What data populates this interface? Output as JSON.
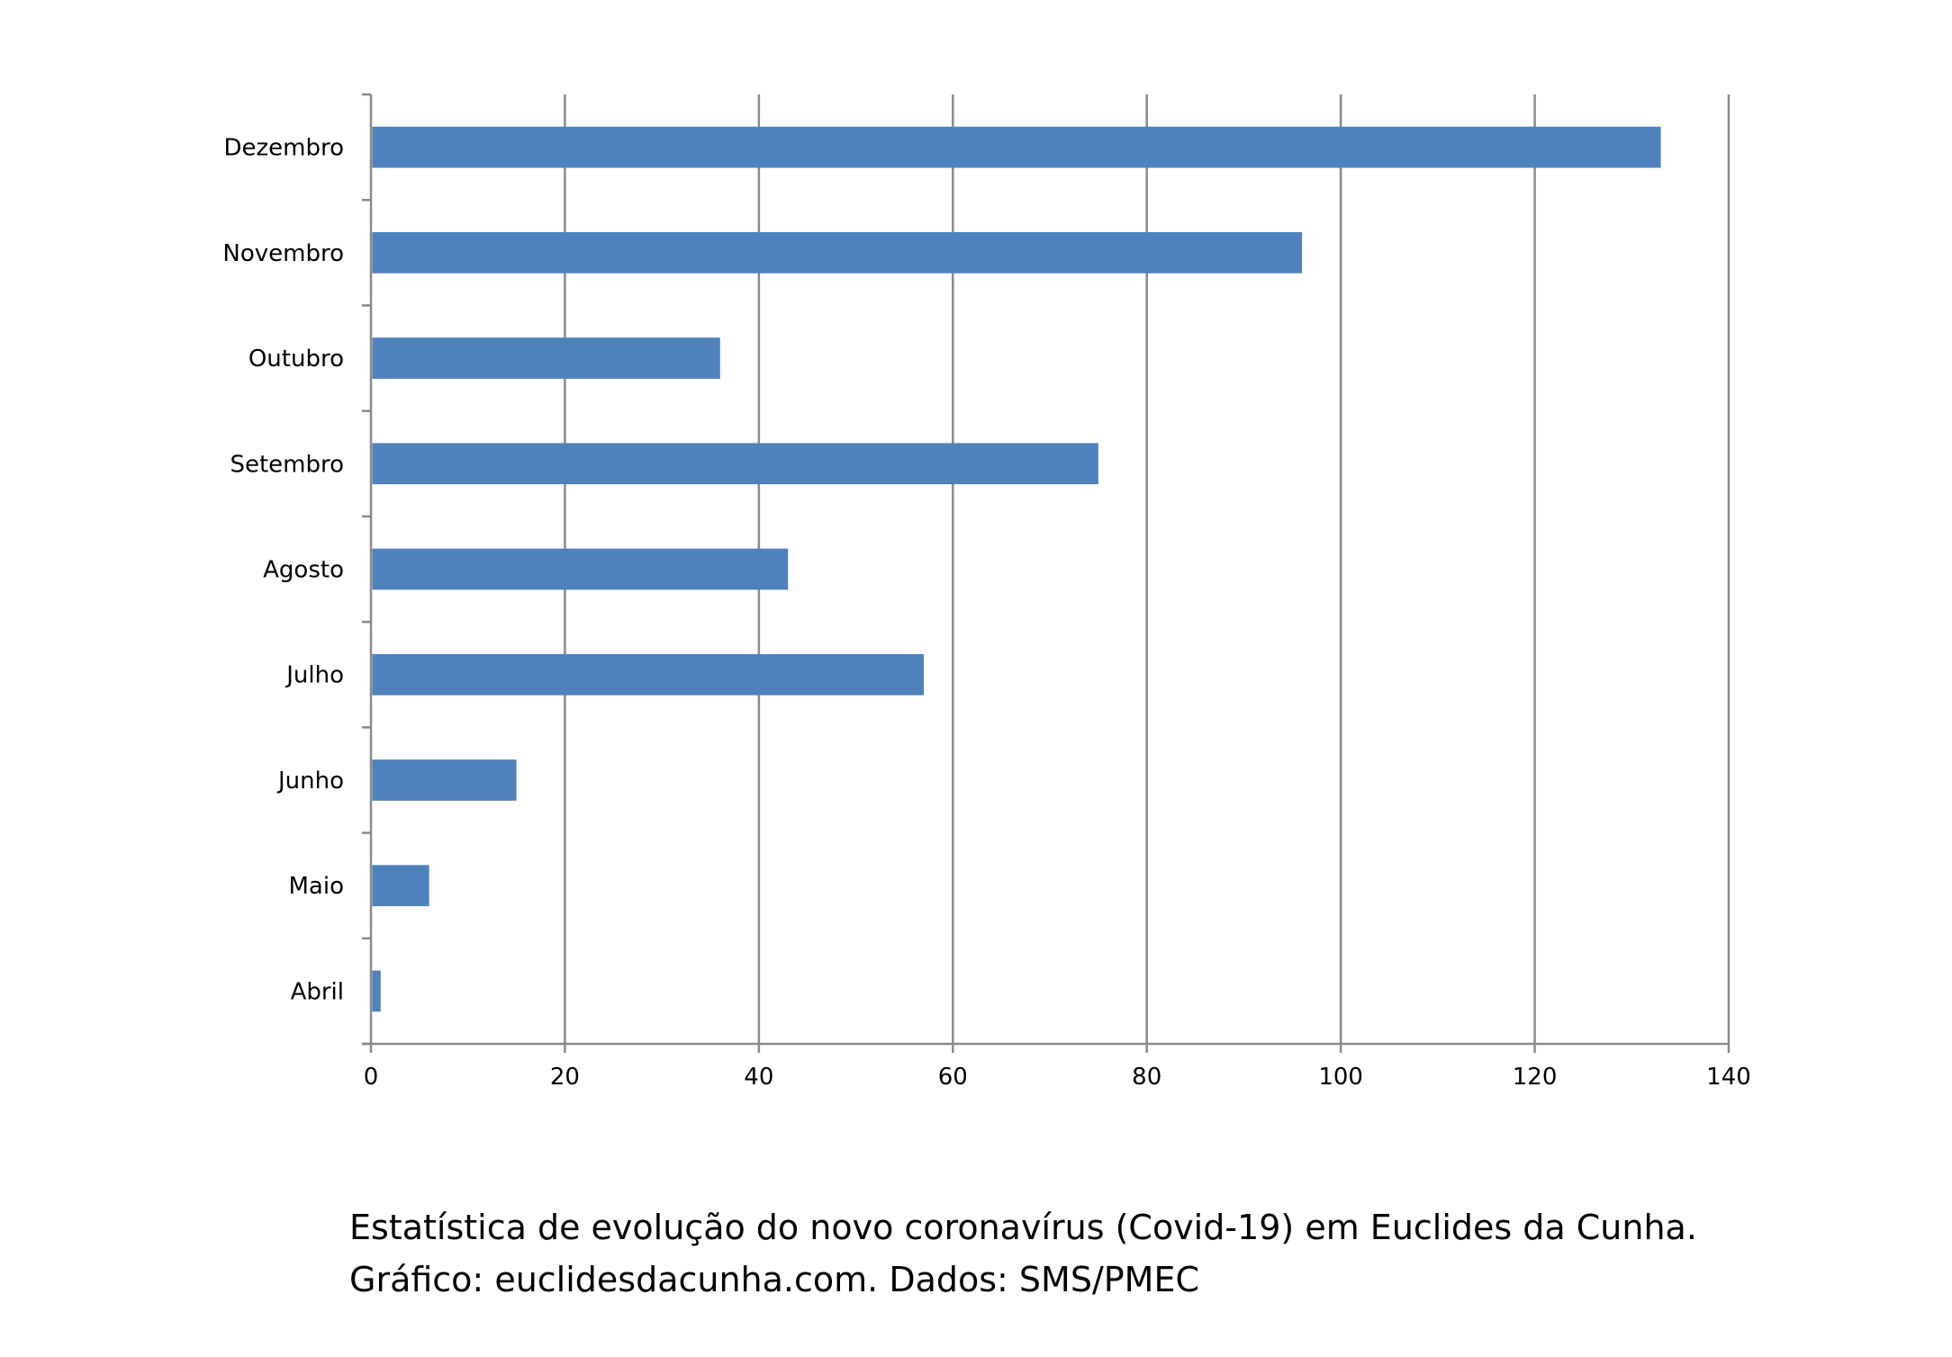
{
  "chart_data": {
    "type": "bar",
    "orientation": "horizontal",
    "categories": [
      "Abril",
      "Maio",
      "Junho",
      "Julho",
      "Agosto",
      "Setembro",
      "Outubro",
      "Novembro",
      "Dezembro"
    ],
    "values": [
      1,
      6,
      15,
      57,
      43,
      75,
      36,
      96,
      133
    ],
    "xlim": [
      0,
      140
    ],
    "xticks": [
      "0",
      "20",
      "40",
      "60",
      "80",
      "100",
      "120",
      "140"
    ],
    "grid": "vertical",
    "bar_color": "#4F81BD",
    "title": "",
    "xlabel": "",
    "ylabel": ""
  },
  "caption": {
    "line1": "Estatística de evolução do novo coronavírus (Covid-19) em Euclides da Cunha.",
    "line2": "Gráfico: euclidesdacunha.com. Dados: SMS/PMEC"
  }
}
